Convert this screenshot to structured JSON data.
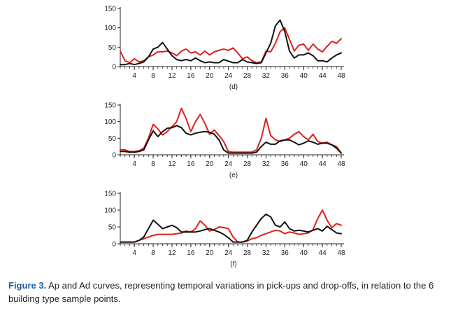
{
  "caption": {
    "figure_number": "Figure 3.",
    "text": " Ap and Ad curves, representing temporal variations in pick-ups and drop-offs, in relation to the 6 building type sample points."
  },
  "colors": {
    "black_series": "#111111",
    "red_series": "#e0201c",
    "axis": "#222222"
  },
  "chart_data": [
    {
      "type": "line",
      "panel_label": "(d)",
      "xlim": [
        1,
        48
      ],
      "ylim": [
        0,
        150
      ],
      "xticks": [
        4,
        8,
        12,
        16,
        20,
        24,
        28,
        32,
        36,
        40,
        44,
        48
      ],
      "yticks": [
        0,
        50,
        100,
        150
      ],
      "x": [
        1,
        2,
        3,
        4,
        5,
        6,
        7,
        8,
        9,
        10,
        11,
        12,
        13,
        14,
        15,
        16,
        17,
        18,
        19,
        20,
        21,
        22,
        23,
        24,
        25,
        26,
        27,
        28,
        29,
        30,
        31,
        32,
        33,
        34,
        35,
        36,
        37,
        38,
        39,
        40,
        41,
        42,
        43,
        44,
        45,
        46,
        47,
        48
      ],
      "series": [
        {
          "color": "black",
          "values": [
            5,
            5,
            8,
            5,
            8,
            12,
            25,
            45,
            50,
            62,
            45,
            28,
            18,
            15,
            18,
            15,
            22,
            15,
            10,
            12,
            10,
            10,
            18,
            14,
            10,
            10,
            18,
            12,
            10,
            8,
            10,
            35,
            60,
            105,
            120,
            90,
            40,
            22,
            30,
            30,
            35,
            28,
            15,
            15,
            12,
            22,
            30,
            35
          ]
        },
        {
          "color": "red",
          "values": [
            40,
            15,
            10,
            20,
            12,
            15,
            25,
            30,
            38,
            38,
            40,
            35,
            28,
            40,
            45,
            35,
            38,
            30,
            40,
            30,
            38,
            42,
            45,
            42,
            48,
            35,
            20,
            25,
            15,
            10,
            12,
            40,
            38,
            60,
            90,
            100,
            70,
            40,
            55,
            58,
            42,
            58,
            45,
            38,
            52,
            65,
            60,
            72
          ]
        }
      ]
    },
    {
      "type": "line",
      "panel_label": "(e)",
      "xlim": [
        1,
        48
      ],
      "ylim": [
        0,
        150
      ],
      "xticks": [
        4,
        8,
        12,
        16,
        20,
        24,
        28,
        32,
        36,
        40,
        44,
        48
      ],
      "yticks": [
        0,
        50,
        100,
        150
      ],
      "x": [
        1,
        2,
        3,
        4,
        5,
        6,
        7,
        8,
        9,
        10,
        11,
        12,
        13,
        14,
        15,
        16,
        17,
        18,
        19,
        20,
        21,
        22,
        23,
        24,
        25,
        26,
        27,
        28,
        29,
        30,
        31,
        32,
        33,
        34,
        35,
        36,
        37,
        38,
        39,
        40,
        41,
        42,
        43,
        44,
        45,
        46,
        47,
        48
      ],
      "series": [
        {
          "color": "black",
          "values": [
            10,
            10,
            8,
            8,
            10,
            15,
            45,
            72,
            55,
            70,
            80,
            82,
            88,
            82,
            65,
            60,
            65,
            68,
            70,
            68,
            62,
            45,
            15,
            5,
            5,
            5,
            5,
            5,
            5,
            8,
            25,
            38,
            32,
            32,
            42,
            45,
            45,
            38,
            30,
            35,
            42,
            38,
            32,
            35,
            35,
            30,
            20,
            5
          ]
        },
        {
          "color": "red",
          "values": [
            15,
            15,
            10,
            10,
            12,
            20,
            50,
            92,
            78,
            60,
            70,
            85,
            100,
            140,
            110,
            70,
            100,
            122,
            95,
            62,
            75,
            58,
            40,
            10,
            8,
            8,
            8,
            8,
            8,
            15,
            50,
            110,
            58,
            45,
            40,
            45,
            50,
            62,
            70,
            55,
            45,
            62,
            40,
            35,
            38,
            30,
            25,
            5
          ]
        }
      ]
    },
    {
      "type": "line",
      "panel_label": "(f)",
      "xlim": [
        1,
        48
      ],
      "ylim": [
        0,
        150
      ],
      "xticks": [
        4,
        8,
        12,
        16,
        20,
        24,
        28,
        32,
        36,
        40,
        44,
        48
      ],
      "yticks": [
        0,
        50,
        100,
        150
      ],
      "x": [
        1,
        2,
        3,
        4,
        5,
        6,
        7,
        8,
        9,
        10,
        11,
        12,
        13,
        14,
        15,
        16,
        17,
        18,
        19,
        20,
        21,
        22,
        23,
        24,
        25,
        26,
        27,
        28,
        29,
        30,
        31,
        32,
        33,
        34,
        35,
        36,
        37,
        38,
        39,
        40,
        41,
        42,
        43,
        44,
        45,
        46,
        47,
        48
      ],
      "series": [
        {
          "color": "black",
          "values": [
            5,
            5,
            5,
            5,
            10,
            20,
            45,
            70,
            58,
            45,
            50,
            55,
            48,
            35,
            35,
            35,
            35,
            38,
            42,
            45,
            40,
            35,
            28,
            18,
            5,
            5,
            5,
            10,
            35,
            55,
            75,
            88,
            80,
            55,
            50,
            65,
            45,
            38,
            40,
            38,
            35,
            40,
            45,
            38,
            52,
            42,
            32,
            30
          ]
        },
        {
          "color": "red",
          "values": [
            5,
            5,
            5,
            5,
            10,
            15,
            20,
            25,
            28,
            28,
            28,
            28,
            30,
            32,
            38,
            35,
            45,
            68,
            55,
            38,
            42,
            50,
            48,
            45,
            20,
            5,
            5,
            8,
            15,
            18,
            25,
            30,
            35,
            40,
            38,
            30,
            35,
            32,
            28,
            30,
            32,
            42,
            75,
            100,
            70,
            48,
            60,
            55
          ]
        }
      ]
    }
  ]
}
